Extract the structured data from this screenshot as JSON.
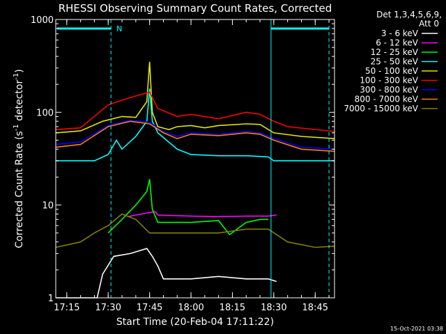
{
  "chart_data": {
    "type": "line",
    "title": "RHESSI Observing Summary Count Rates, Corrected",
    "xlabel": "Start Time (20-Feb-04 17:11:22)",
    "ylabel": "Corrected Count Rate (s",
    "ylabel_sup1": "-1",
    "ylabel_mid": " detector",
    "ylabel_sup2": "-1",
    "ylabel_end": ")",
    "yscale": "log",
    "ylim": [
      1,
      1000
    ],
    "xlim": [
      "17:11",
      "18:52"
    ],
    "x_ticks": [
      "17:15",
      "17:30",
      "17:45",
      "18:00",
      "18:15",
      "18:30",
      "18:45"
    ],
    "y_ticks": [
      "1",
      "10",
      "100",
      "1000"
    ],
    "legend_header": [
      "Det 1,3,4,5,6,9,",
      "Att 0"
    ],
    "legend_position": "top-right, outside plot",
    "timestamp": "15-Oct-2021 03:38",
    "night_marker": "N",
    "series": [
      {
        "name": "3 - 6 keV",
        "color": "#ffffff",
        "x": [
          "17:11",
          "17:26",
          "17:28",
          "17:32",
          "17:38",
          "17:44",
          "17:46",
          "17:48",
          "17:50",
          "18:00",
          "18:10",
          "18:20",
          "18:28",
          "18:31"
        ],
        "y": [
          1,
          1,
          1.8,
          2.8,
          3,
          3.4,
          2.8,
          2.2,
          1.6,
          1.6,
          1.7,
          1.6,
          1.6,
          1.5
        ]
      },
      {
        "name": "6 - 12 keV",
        "color": "#ff00ff",
        "x": [
          "17:37",
          "17:42",
          "17:47",
          "17:48",
          "18:00",
          "18:10",
          "18:20",
          "18:28",
          "18:31"
        ],
        "y": [
          7.5,
          8,
          8.5,
          7.8,
          7.6,
          7.5,
          7.6,
          7.6,
          7.8
        ]
      },
      {
        "name": "12 - 25 keV",
        "color": "#00ff00",
        "x": [
          "17:30",
          "17:35",
          "17:40",
          "17:44",
          "17:45",
          "17:46",
          "17:48",
          "18:00",
          "18:10",
          "18:14",
          "18:20",
          "18:25",
          "18:28"
        ],
        "y": [
          5,
          7,
          10,
          14,
          19,
          9,
          6.5,
          6.5,
          6.8,
          4.8,
          6.5,
          7,
          7
        ]
      },
      {
        "name": "25 - 50 keV",
        "color": "#00ffff",
        "x": [
          "17:11",
          "17:25",
          "17:30",
          "17:33",
          "17:35",
          "17:40",
          "17:44",
          "17:45",
          "17:46",
          "17:48",
          "17:55",
          "18:00",
          "18:10",
          "18:20",
          "18:28",
          "18:30",
          "18:40",
          "18:52"
        ],
        "y": [
          30,
          30,
          35,
          50,
          40,
          55,
          80,
          180,
          80,
          60,
          40,
          35,
          34,
          34,
          33,
          30,
          30,
          30
        ]
      },
      {
        "name": "50 - 100 keV",
        "color": "#e6e600",
        "x": [
          "17:11",
          "17:20",
          "17:28",
          "17:35",
          "17:40",
          "17:44",
          "17:45",
          "17:46",
          "17:48",
          "17:52",
          "17:55",
          "18:00",
          "18:05",
          "18:10",
          "18:20",
          "18:25",
          "18:30",
          "18:40",
          "18:52"
        ],
        "y": [
          60,
          63,
          80,
          90,
          88,
          130,
          350,
          100,
          70,
          65,
          70,
          72,
          68,
          72,
          75,
          74,
          60,
          55,
          52
        ]
      },
      {
        "name": "100 - 300 keV",
        "color": "#ff0000",
        "x": [
          "17:11",
          "17:20",
          "17:30",
          "17:35",
          "17:40",
          "17:45",
          "17:48",
          "17:55",
          "18:00",
          "18:10",
          "18:20",
          "18:25",
          "18:30",
          "18:35",
          "18:52"
        ],
        "y": [
          65,
          68,
          120,
          135,
          150,
          165,
          110,
          90,
          95,
          85,
          100,
          95,
          80,
          70,
          62
        ]
      },
      {
        "name": "300 - 800 keV",
        "color": "#0000ff",
        "x": [
          "17:11",
          "17:20",
          "17:30",
          "17:38",
          "17:45",
          "17:50",
          "17:55",
          "18:00",
          "18:10",
          "18:20",
          "18:25",
          "18:30",
          "18:40",
          "18:52"
        ],
        "y": [
          45,
          48,
          72,
          82,
          78,
          62,
          55,
          60,
          58,
          62,
          60,
          52,
          42,
          40
        ]
      },
      {
        "name": "800 - 7000 keV",
        "color": "#ff8000",
        "x": [
          "17:11",
          "17:20",
          "17:30",
          "17:38",
          "17:45",
          "17:50",
          "17:55",
          "18:00",
          "18:10",
          "18:20",
          "18:25",
          "18:30",
          "18:40",
          "18:52"
        ],
        "y": [
          42,
          45,
          70,
          80,
          75,
          60,
          52,
          58,
          56,
          60,
          58,
          50,
          40,
          38
        ]
      },
      {
        "name": "7000 - 15000 keV",
        "color": "#808000",
        "x": [
          "17:11",
          "17:20",
          "17:25",
          "17:30",
          "17:35",
          "17:40",
          "17:45",
          "17:50",
          "18:00",
          "18:10",
          "18:20",
          "18:28",
          "18:35",
          "18:45",
          "18:52"
        ],
        "y": [
          3.5,
          4,
          5,
          6,
          8,
          7,
          5,
          5,
          5,
          5,
          5.5,
          5.5,
          4,
          3.5,
          3.6
        ]
      }
    ]
  }
}
